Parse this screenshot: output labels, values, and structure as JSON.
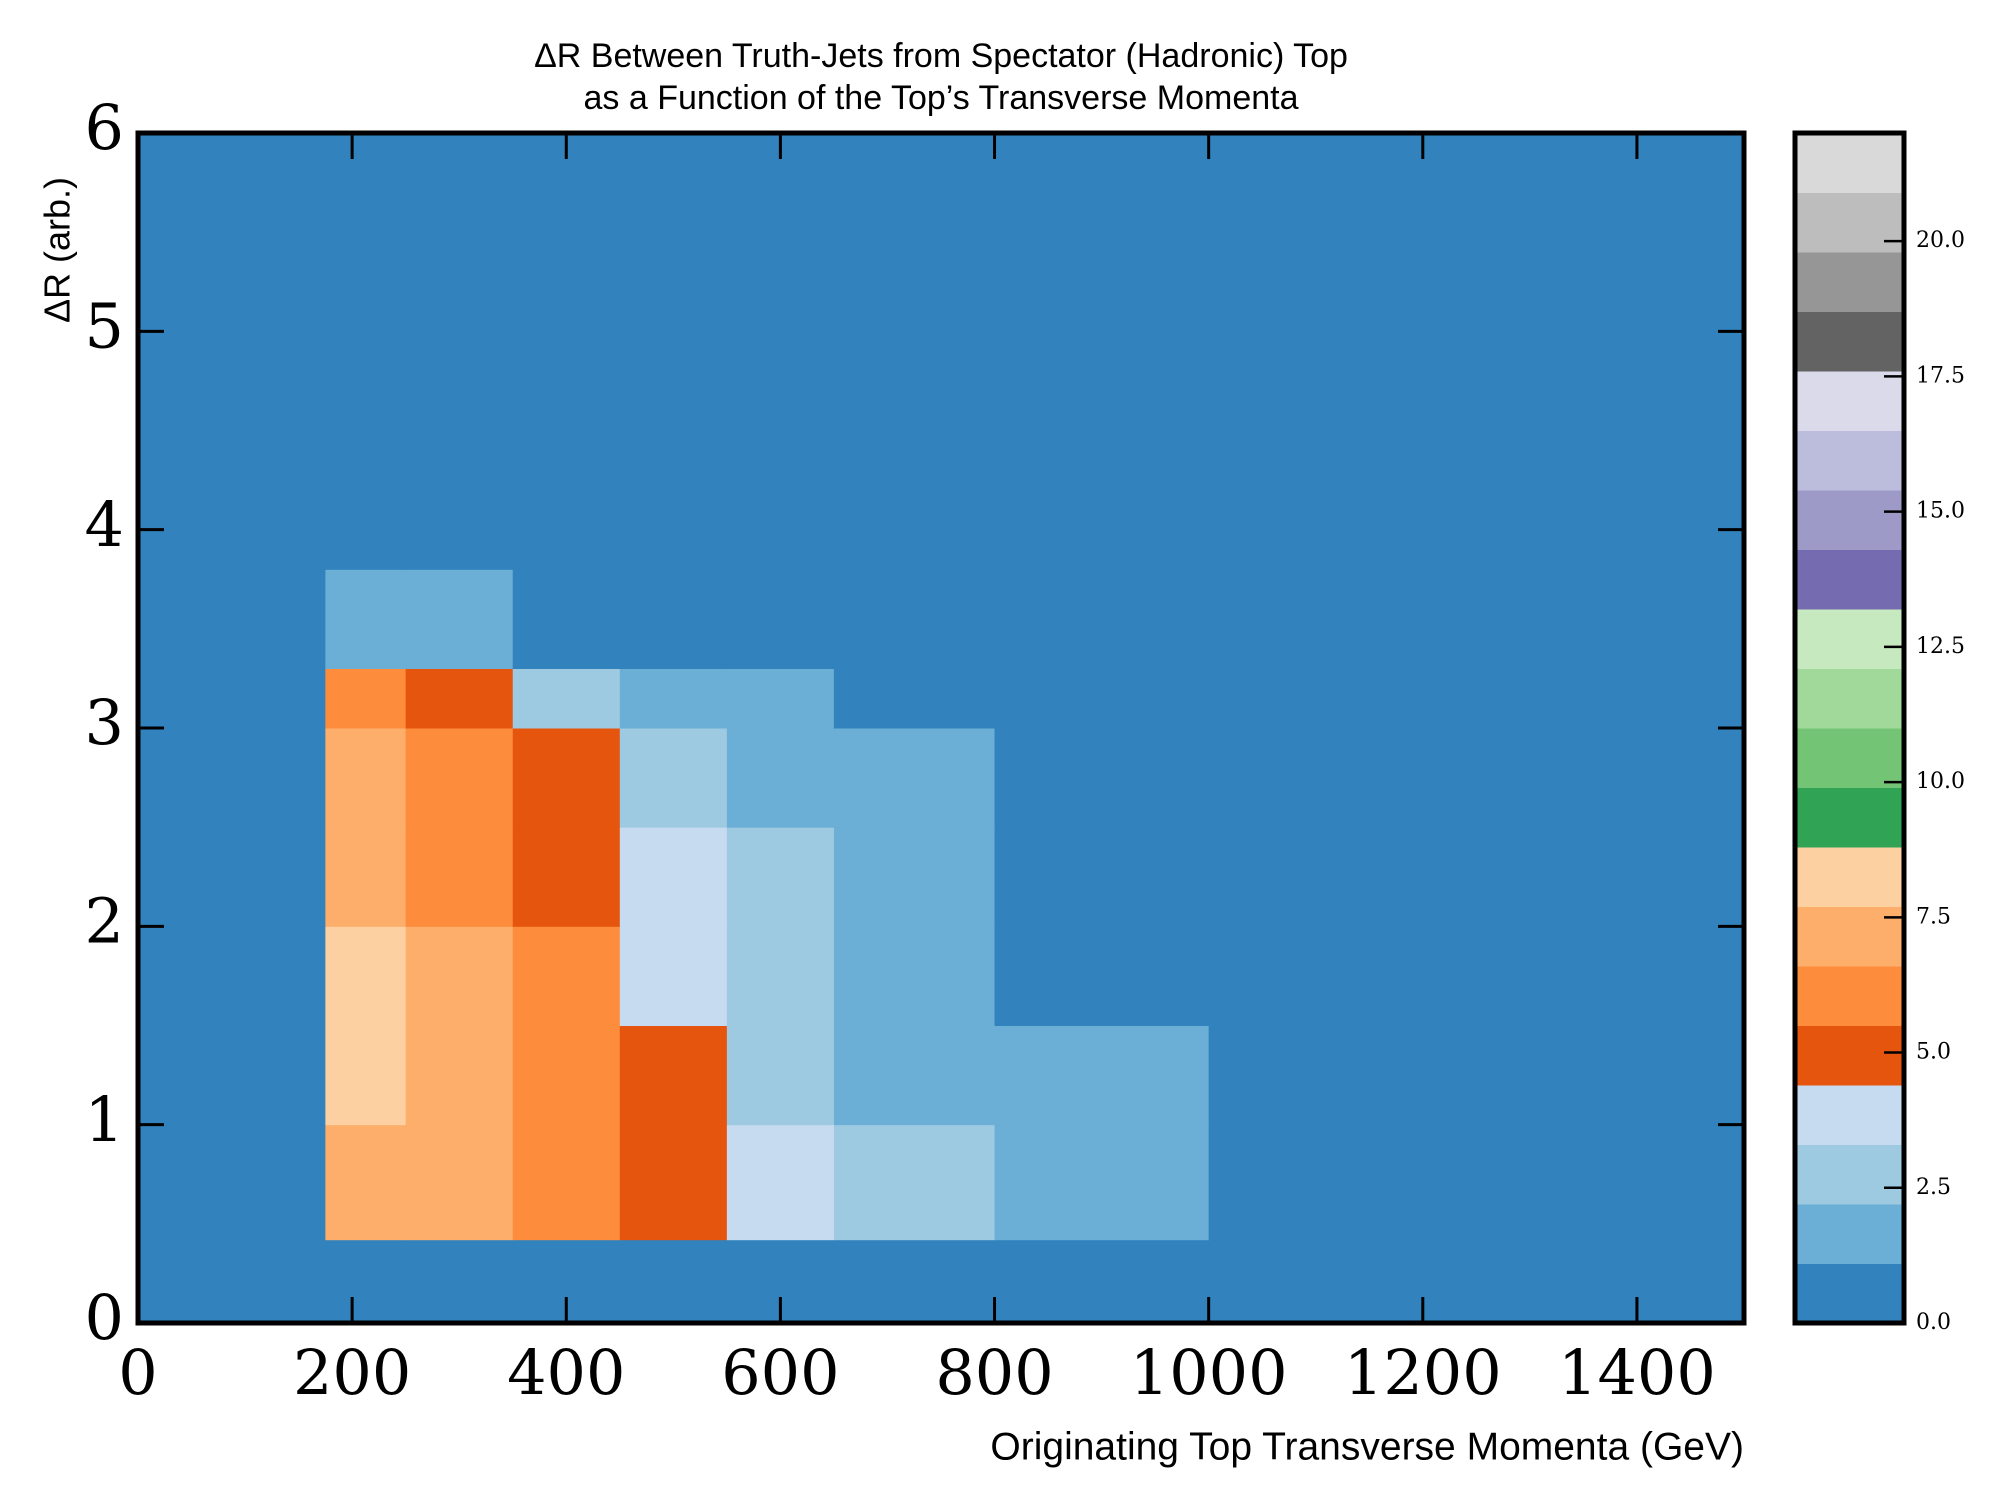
{
  "chart_data": {
    "type": "heatmap",
    "title": "ΔR Between Truth-Jets from Spectator (Hadronic) Top",
    "subtitle": "as a Function of the Top’s Transverse Momenta",
    "x_label": "Originating Top Transverse Momenta (GeV)",
    "y_label": "ΔR (arb.)",
    "xbins": [
      0,
      175,
      250,
      350,
      450,
      550,
      650,
      800,
      1000,
      1200,
      1500
    ],
    "ybins": [
      0,
      0.42,
      1,
      1.5,
      2,
      2.5,
      3,
      3.3,
      3.8,
      4.5,
      6
    ],
    "values": [
      [
        0,
        0,
        0,
        0,
        0,
        0,
        0,
        0,
        0,
        0
      ],
      [
        0,
        7,
        7,
        6,
        4.5,
        3.5,
        2.5,
        1.5,
        0.8,
        0.4
      ],
      [
        0,
        8,
        7.5,
        6,
        4.5,
        3,
        2,
        1.2,
        0.6,
        0.3
      ],
      [
        0,
        8,
        7,
        5.5,
        4,
        2.8,
        1.8,
        1,
        0.5,
        0.25
      ],
      [
        0,
        7.5,
        6.5,
        5,
        3.5,
        2.3,
        1.4,
        0.8,
        0.4,
        0.2
      ],
      [
        0,
        7,
        6,
        4.5,
        3,
        1.8,
        1.1,
        0.6,
        0.3,
        0.15
      ],
      [
        0,
        5.5,
        4.5,
        3.2,
        2,
        1.2,
        0.7,
        0.4,
        0.2,
        0.1
      ],
      [
        0,
        2,
        1.5,
        1,
        0.6,
        0.4,
        0.2,
        0.1,
        0.05,
        0.03
      ],
      [
        0,
        0.3,
        0.2,
        0.1,
        0.05,
        0.02,
        0.01,
        0.01,
        0,
        0
      ],
      [
        0,
        0,
        0,
        0,
        0,
        0,
        0,
        0,
        0,
        0
      ]
    ],
    "xlim": [
      0,
      1500
    ],
    "xticks": [
      0,
      200,
      400,
      600,
      800,
      1000,
      1200,
      1400
    ],
    "ylim": [
      0,
      6
    ],
    "yticks": [
      0,
      1,
      2,
      3,
      4,
      5,
      6
    ],
    "zlim": [
      0,
      22
    ],
    "zticks": [
      {
        "value": 0,
        "label": "0.0"
      },
      {
        "value": 2.5,
        "label": "2.5"
      },
      {
        "value": 5,
        "label": "5.0"
      },
      {
        "value": 7.5,
        "label": "7.5"
      },
      {
        "value": 10,
        "label": "10.0"
      },
      {
        "value": 12.5,
        "label": "12.5"
      },
      {
        "value": 15,
        "label": "15.0"
      },
      {
        "value": 17.5,
        "label": "17.5"
      },
      {
        "value": 20,
        "label": "20.0"
      }
    ],
    "colors": [
      "#3182bd",
      "#6baed6",
      "#9ecae1",
      "#c6dbef",
      "#e6550d",
      "#fd8d3c",
      "#fdae6b",
      "#fdd0a2",
      "#31a354",
      "#74c476",
      "#a1d99b",
      "#c7e9c0",
      "#756bb1",
      "#9e9ac8",
      "#bcbddc",
      "#dadaeb",
      "#636363",
      "#969696",
      "#bdbdbd",
      "#d9d9d9"
    ]
  }
}
